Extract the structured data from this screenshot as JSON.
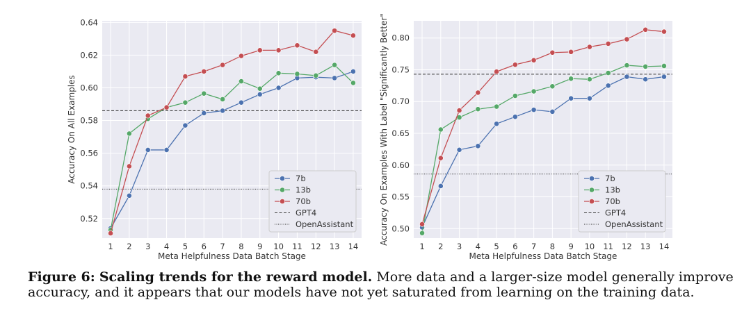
{
  "caption": {
    "label": "Figure 6:",
    "title": "Scaling trends for the reward model.",
    "text": "More data and a larger-size model generally improve accuracy, and it appears that our models have not yet saturated from learning on the training data."
  },
  "colors": {
    "7b": "#4c72b0",
    "13b": "#55a868",
    "70b": "#c44e52",
    "panel_bg": "#eaeaf2",
    "grid": "#ffffff"
  },
  "chart_data": [
    {
      "type": "line",
      "xlabel": "Meta Helpfulness Data Batch Stage",
      "ylabel": "Accuracy On All Examples",
      "x": [
        1,
        2,
        3,
        4,
        5,
        6,
        7,
        8,
        9,
        10,
        11,
        12,
        13,
        14
      ],
      "xticks": [
        "1",
        "2",
        "3",
        "4",
        "5",
        "6",
        "7",
        "8",
        "9",
        "10",
        "11",
        "12",
        "13",
        "14"
      ],
      "yticks": [
        "0.52",
        "0.54",
        "0.56",
        "0.58",
        "0.60",
        "0.62",
        "0.64"
      ],
      "ylim": [
        0.508,
        0.641
      ],
      "grid": true,
      "legend_position": "bottom-right",
      "series": [
        {
          "name": "7b",
          "color": "#4c72b0",
          "values": [
            0.514,
            0.534,
            0.562,
            0.562,
            0.577,
            0.5845,
            0.586,
            0.591,
            0.596,
            0.6,
            0.606,
            0.6065,
            0.606,
            0.61
          ]
        },
        {
          "name": "13b",
          "color": "#55a868",
          "values": [
            0.513,
            0.572,
            0.581,
            0.588,
            0.591,
            0.5965,
            0.593,
            0.604,
            0.5995,
            0.609,
            0.6085,
            0.6075,
            0.614,
            0.603
          ]
        },
        {
          "name": "70b",
          "color": "#c44e52",
          "values": [
            0.511,
            0.552,
            0.583,
            0.588,
            0.607,
            0.61,
            0.614,
            0.6195,
            0.623,
            0.623,
            0.626,
            0.622,
            0.635,
            0.632
          ]
        }
      ],
      "reference_lines": [
        {
          "name": "GPT4",
          "style": "dashed",
          "value": 0.586
        },
        {
          "name": "OpenAssistant",
          "style": "dotted",
          "value": 0.538
        }
      ]
    },
    {
      "type": "line",
      "xlabel": "Meta Helpfulness Data Batch Stage",
      "ylabel": "Accuracy On Examples With Label \"Significantly Better\"",
      "x": [
        1,
        2,
        3,
        4,
        5,
        6,
        7,
        8,
        9,
        10,
        11,
        12,
        13,
        14
      ],
      "xticks": [
        "1",
        "2",
        "3",
        "4",
        "5",
        "6",
        "7",
        "8",
        "9",
        "10",
        "11",
        "12",
        "13",
        "14"
      ],
      "yticks": [
        "0.50",
        "0.55",
        "0.60",
        "0.65",
        "0.70",
        "0.75",
        "0.80"
      ],
      "ylim": [
        0.485,
        0.827
      ],
      "grid": true,
      "legend_position": "bottom-right",
      "series": [
        {
          "name": "7b",
          "color": "#4c72b0",
          "values": [
            0.502,
            0.567,
            0.624,
            0.63,
            0.665,
            0.676,
            0.687,
            0.684,
            0.705,
            0.705,
            0.725,
            0.739,
            0.735,
            0.739
          ]
        },
        {
          "name": "13b",
          "color": "#55a868",
          "values": [
            0.493,
            0.656,
            0.675,
            0.688,
            0.692,
            0.709,
            0.716,
            0.724,
            0.736,
            0.735,
            0.745,
            0.757,
            0.755,
            0.756
          ]
        },
        {
          "name": "70b",
          "color": "#c44e52",
          "values": [
            0.507,
            0.611,
            0.686,
            0.714,
            0.747,
            0.758,
            0.765,
            0.777,
            0.778,
            0.786,
            0.791,
            0.798,
            0.813,
            0.81
          ]
        }
      ],
      "reference_lines": [
        {
          "name": "GPT4",
          "style": "dashed",
          "value": 0.743
        },
        {
          "name": "OpenAssistant",
          "style": "dotted",
          "value": 0.586
        }
      ]
    }
  ]
}
